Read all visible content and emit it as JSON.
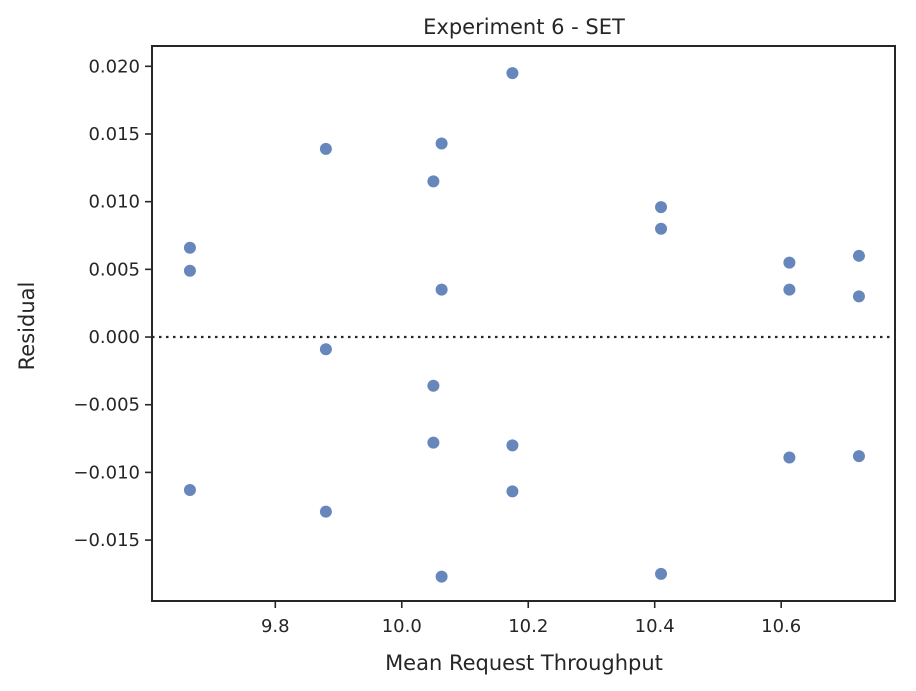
{
  "chart_data": {
    "type": "scatter",
    "title": "Experiment 6 - SET",
    "xlabel": "Mean Request Throughput",
    "ylabel": "Residual",
    "xlim": [
      9.605,
      10.78
    ],
    "ylim": [
      -0.0195,
      0.0215
    ],
    "xticks": [
      9.8,
      10.0,
      10.2,
      10.4,
      10.6
    ],
    "xtick_labels": [
      "9.8",
      "10.0",
      "10.2",
      "10.4",
      "10.6"
    ],
    "yticks": [
      0.02,
      0.015,
      0.01,
      0.005,
      0.0,
      -0.005,
      -0.01,
      -0.015
    ],
    "ytick_labels": [
      "0.020",
      "0.015",
      "0.010",
      "0.005",
      "0.000",
      "−0.005",
      "−0.010",
      "−0.015"
    ],
    "reference_line": {
      "y": 0.0,
      "style": "dotted"
    },
    "grid": false,
    "marker_color": "#4c72b0",
    "points": [
      {
        "x": 9.665,
        "y": 0.0066
      },
      {
        "x": 9.665,
        "y": 0.0049
      },
      {
        "x": 9.665,
        "y": -0.0113
      },
      {
        "x": 9.88,
        "y": 0.0139
      },
      {
        "x": 9.88,
        "y": -0.0009
      },
      {
        "x": 9.88,
        "y": -0.0129
      },
      {
        "x": 10.05,
        "y": 0.0115
      },
      {
        "x": 10.05,
        "y": -0.0036
      },
      {
        "x": 10.05,
        "y": -0.0078
      },
      {
        "x": 10.063,
        "y": 0.0143
      },
      {
        "x": 10.063,
        "y": 0.0035
      },
      {
        "x": 10.063,
        "y": -0.0177
      },
      {
        "x": 10.175,
        "y": 0.0195
      },
      {
        "x": 10.175,
        "y": -0.008
      },
      {
        "x": 10.175,
        "y": -0.0114
      },
      {
        "x": 10.41,
        "y": 0.0096
      },
      {
        "x": 10.41,
        "y": 0.008
      },
      {
        "x": 10.41,
        "y": -0.0175
      },
      {
        "x": 10.613,
        "y": 0.0055
      },
      {
        "x": 10.613,
        "y": 0.0035
      },
      {
        "x": 10.613,
        "y": -0.0089
      },
      {
        "x": 10.723,
        "y": 0.006
      },
      {
        "x": 10.723,
        "y": 0.003
      },
      {
        "x": 10.723,
        "y": -0.0088
      }
    ]
  }
}
